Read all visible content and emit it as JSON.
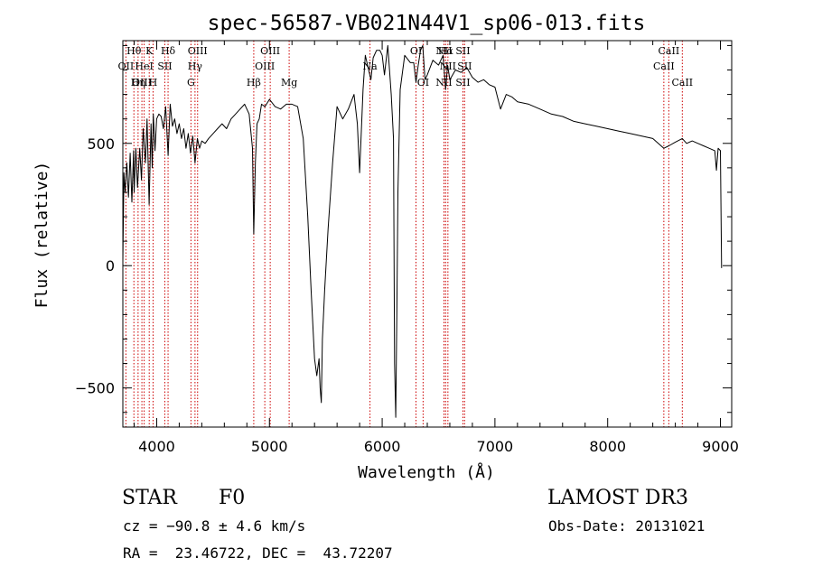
{
  "chart_data": {
    "type": "line",
    "title": "spec-56587-VB021N44V1_sp06-013.fits",
    "xlabel": "Wavelength (Å)",
    "ylabel": "Flux (relative)",
    "xlim": [
      3700,
      9100
    ],
    "ylim": [
      -660,
      920
    ],
    "x_ticks": [
      4000,
      5000,
      6000,
      7000,
      8000,
      9000
    ],
    "x_tick_labels": [
      "4000",
      "5000",
      "6000",
      "7000",
      "8000",
      "9000"
    ],
    "y_ticks": [
      -500,
      0,
      500
    ],
    "y_tick_labels": [
      "−500",
      "0",
      "500"
    ],
    "grid": false,
    "line_color": "#000000",
    "marker_color": "#cc0000",
    "series": [
      {
        "x": [
          3700,
          3710,
          3720,
          3735,
          3750,
          3765,
          3780,
          3795,
          3800,
          3815,
          3830,
          3850,
          3865,
          3880,
          3900,
          3915,
          3933,
          3950,
          3960,
          3970,
          3985,
          4000,
          4020,
          4040,
          4060,
          4080,
          4101,
          4120,
          4140,
          4160,
          4180,
          4200,
          4220,
          4240,
          4260,
          4280,
          4300,
          4320,
          4340,
          4361,
          4380,
          4400,
          4430,
          4460,
          4500,
          4540,
          4580,
          4620,
          4660,
          4700,
          4740,
          4780,
          4820,
          4850,
          4861,
          4875,
          4890,
          4910,
          4930,
          4960,
          5000,
          5050,
          5100,
          5150,
          5200,
          5250,
          5300,
          5340,
          5370,
          5400,
          5420,
          5440,
          5450,
          5460,
          5470,
          5490,
          5520,
          5560,
          5600,
          5650,
          5700,
          5750,
          5780,
          5800,
          5830,
          5850,
          5880,
          5900,
          5920,
          5950,
          5980,
          6000,
          6020,
          6050,
          6080,
          6100,
          6110,
          6120,
          6130,
          6140,
          6160,
          6200,
          6250,
          6280,
          6300,
          6320,
          6340,
          6360,
          6380,
          6400,
          6450,
          6500,
          6540,
          6563,
          6580,
          6600,
          6650,
          6700,
          6750,
          6800,
          6850,
          6900,
          6950,
          7000,
          7050,
          7100,
          7150,
          7200,
          7300,
          7400,
          7500,
          7600,
          7700,
          7800,
          7900,
          8000,
          8100,
          8200,
          8300,
          8400,
          8498,
          8542,
          8600,
          8662,
          8700,
          8750,
          8800,
          8850,
          8900,
          8950,
          8965,
          8980,
          9000,
          9010
        ],
        "y": [
          20,
          380,
          300,
          420,
          280,
          460,
          260,
          470,
          300,
          480,
          320,
          480,
          350,
          560,
          420,
          600,
          250,
          580,
          400,
          620,
          470,
          600,
          620,
          610,
          560,
          650,
          450,
          660,
          570,
          600,
          540,
          580,
          520,
          560,
          480,
          540,
          460,
          530,
          420,
          520,
          480,
          510,
          500,
          520,
          540,
          560,
          580,
          560,
          600,
          620,
          640,
          660,
          620,
          480,
          130,
          420,
          580,
          600,
          660,
          650,
          680,
          650,
          640,
          660,
          660,
          650,
          520,
          200,
          -100,
          -380,
          -450,
          -380,
          -500,
          -560,
          -300,
          -100,
          150,
          420,
          650,
          600,
          640,
          700,
          580,
          380,
          720,
          860,
          800,
          760,
          850,
          880,
          880,
          860,
          780,
          900,
          700,
          520,
          -400,
          -620,
          -200,
          300,
          720,
          860,
          830,
          830,
          750,
          820,
          880,
          900,
          760,
          780,
          840,
          820,
          860,
          720,
          820,
          760,
          800,
          790,
          810,
          770,
          750,
          760,
          740,
          730,
          640,
          700,
          690,
          670,
          660,
          640,
          620,
          610,
          590,
          580,
          570,
          560,
          550,
          540,
          530,
          520,
          480,
          490,
          505,
          520,
          500,
          510,
          500,
          490,
          480,
          470,
          390,
          480,
          470,
          -10
        ]
      }
    ],
    "lines": [
      {
        "label": "Hθ",
        "x": 3798,
        "row": 1
      },
      {
        "label": "OII",
        "x": 3727,
        "row": 2
      },
      {
        "label": "OIII",
        "x": 3869,
        "row": 3
      },
      {
        "label": "K",
        "x": 3934,
        "row": 1
      },
      {
        "label": "HeI",
        "x": 3889,
        "row": 2
      },
      {
        "label": "Hη",
        "x": 3835,
        "row": 3
      },
      {
        "label": "Hδ",
        "x": 4101,
        "row": 1
      },
      {
        "label": "SII",
        "x": 4072,
        "row": 2
      },
      {
        "label": "H",
        "x": 3968,
        "row": 3
      },
      {
        "label": "OIII",
        "x": 4363,
        "row": 1
      },
      {
        "label": "Hγ",
        "x": 4340,
        "row": 2
      },
      {
        "label": "G",
        "x": 4304,
        "row": 3
      },
      {
        "label": "OIII",
        "x": 5007,
        "row": 1
      },
      {
        "label": "OIII",
        "x": 4959,
        "row": 2
      },
      {
        "label": "Hβ",
        "x": 4861,
        "row": 3
      },
      {
        "label": "Mg",
        "x": 5175,
        "row": 3
      },
      {
        "label": "Na",
        "x": 5892,
        "row": 2
      },
      {
        "label": "OI",
        "x": 6300,
        "row": 1
      },
      {
        "label": "OI",
        "x": 6363,
        "row": 3
      },
      {
        "label": "NII",
        "x": 6548,
        "row": 1
      },
      {
        "label": "Hα",
        "x": 6563,
        "row": 1
      },
      {
        "label": "SII",
        "x": 6716,
        "row": 1
      },
      {
        "label": "NII",
        "x": 6583,
        "row": 2
      },
      {
        "label": "SII",
        "x": 6731,
        "row": 2
      },
      {
        "label": "NII",
        "x": 6548,
        "row": 3
      },
      {
        "label": "SII",
        "x": 6716,
        "row": 3
      },
      {
        "label": "CaII",
        "x": 8542,
        "row": 1
      },
      {
        "label": "CaII",
        "x": 8498,
        "row": 2
      },
      {
        "label": "CaII",
        "x": 8662,
        "row": 3
      }
    ]
  },
  "info": {
    "object_class": "STAR",
    "subclass": "F0",
    "survey": "LAMOST DR3",
    "cz": "cz = −90.8 ± 4.6 km/s",
    "obs_date": "Obs-Date: 20131021",
    "coords": "RA =  23.46722, DEC =  43.72207"
  }
}
